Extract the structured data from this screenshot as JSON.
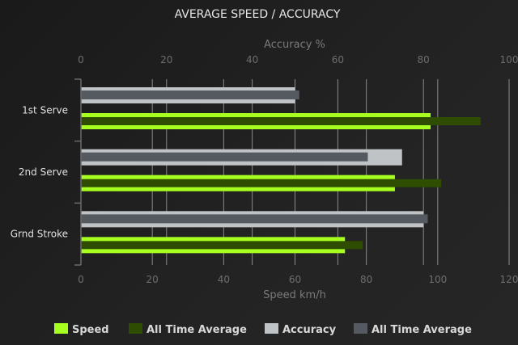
{
  "chart_data": {
    "type": "bar",
    "orientation": "horizontal",
    "title": "AVERAGE SPEED / ACCURACY",
    "categories": [
      "1st Serve",
      "2nd Serve",
      "Grnd Stroke"
    ],
    "top_axis": {
      "label": "Accuracy %",
      "range": [
        0,
        100
      ],
      "ticks": [
        "0",
        "20",
        "40",
        "60",
        "80",
        "100"
      ]
    },
    "bottom_axis": {
      "label": "Speed km/h",
      "range": [
        0,
        120
      ],
      "ticks": [
        "0",
        "20",
        "40",
        "60",
        "80",
        "100",
        "120"
      ]
    },
    "grid": true,
    "legend_position": "bottom",
    "series": [
      {
        "name": "Speed",
        "axis": "bottom",
        "color": "#a6ff1e",
        "values": [
          98,
          88,
          74
        ]
      },
      {
        "name": "All Time Average",
        "axis": "bottom",
        "color": "#2f4d00",
        "values": [
          112,
          101,
          79
        ]
      },
      {
        "name": "Accuracy",
        "axis": "top",
        "color": "#bfc3c6",
        "values": [
          50,
          75,
          80
        ]
      },
      {
        "name": "All Time Average",
        "axis": "top",
        "color": "#555a61",
        "values": [
          51,
          67,
          81
        ]
      }
    ]
  }
}
